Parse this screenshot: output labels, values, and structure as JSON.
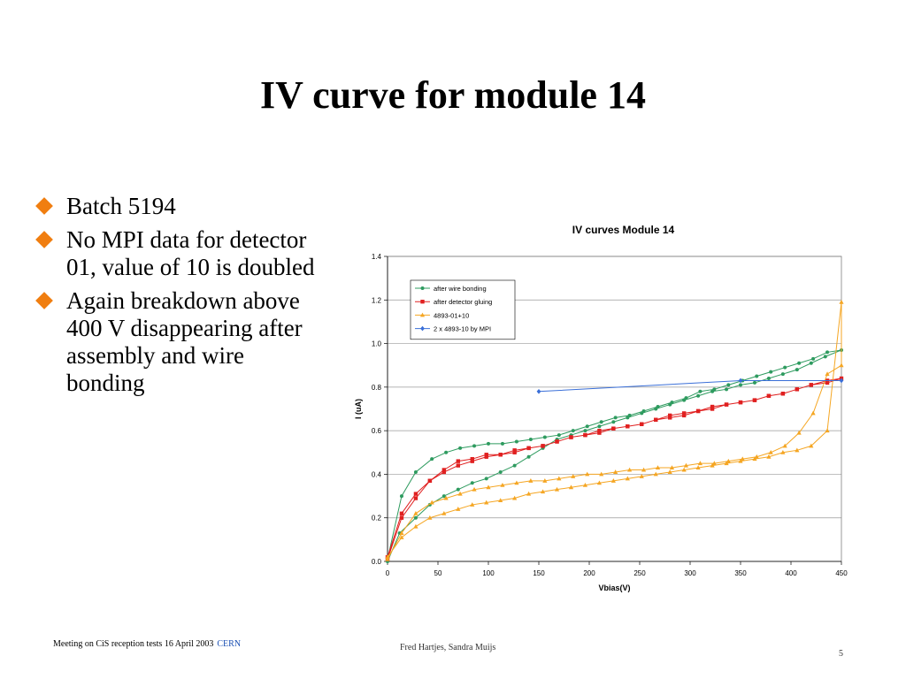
{
  "slide": {
    "title": "IV curve for module 14",
    "bullets": [
      "Batch 5194",
      "No MPI data for detector 01, value of 10 is doubled",
      "Again breakdown above 400 V disappearing after assembly and wire bonding"
    ],
    "bullet_color": "#f07e10",
    "footer": {
      "left_text": "Meeting on CiS reception tests 16 April 2003",
      "left_link": "CERN",
      "center_text": "Fred Hartjes, Sandra Muijs",
      "page_number": "5"
    }
  },
  "chart_data": {
    "type": "line",
    "title": "IV curves Module 14",
    "xlabel": "Vbias(V)",
    "ylabel": "I (uA)",
    "xlim": [
      0,
      450
    ],
    "ylim": [
      0,
      1.4
    ],
    "xticks": [
      "0",
      "50",
      "100",
      "150",
      "200",
      "250",
      "300",
      "350",
      "400",
      "450"
    ],
    "yticks": [
      "0.0",
      "0.2",
      "0.4",
      "0.6",
      "0.8",
      "1.0",
      "1.2",
      "1.4"
    ],
    "grid": "horizontal",
    "legend_position": "top-left",
    "series": [
      {
        "name": "after wire bonding",
        "color": "#2e9b5f",
        "marker": "circle",
        "points": [
          [
            0,
            0
          ],
          [
            12,
            0.13
          ],
          [
            28,
            0.2
          ],
          [
            42,
            0.26
          ],
          [
            56,
            0.3
          ],
          [
            70,
            0.33
          ],
          [
            84,
            0.36
          ],
          [
            98,
            0.38
          ],
          [
            112,
            0.41
          ],
          [
            126,
            0.44
          ],
          [
            140,
            0.48
          ],
          [
            154,
            0.52
          ],
          [
            168,
            0.56
          ],
          [
            182,
            0.58
          ],
          [
            196,
            0.6
          ],
          [
            210,
            0.62
          ],
          [
            224,
            0.64
          ],
          [
            238,
            0.66
          ],
          [
            252,
            0.68
          ],
          [
            266,
            0.7
          ],
          [
            280,
            0.72
          ],
          [
            294,
            0.74
          ],
          [
            308,
            0.76
          ],
          [
            322,
            0.78
          ],
          [
            336,
            0.79
          ],
          [
            350,
            0.81
          ],
          [
            364,
            0.82
          ],
          [
            378,
            0.84
          ],
          [
            392,
            0.86
          ],
          [
            406,
            0.88
          ],
          [
            420,
            0.91
          ],
          [
            434,
            0.94
          ],
          [
            450,
            0.97
          ],
          [
            436,
            0.96
          ],
          [
            422,
            0.93
          ],
          [
            408,
            0.91
          ],
          [
            394,
            0.89
          ],
          [
            380,
            0.87
          ],
          [
            366,
            0.85
          ],
          [
            352,
            0.83
          ],
          [
            338,
            0.81
          ],
          [
            324,
            0.79
          ],
          [
            310,
            0.78
          ],
          [
            296,
            0.75
          ],
          [
            282,
            0.73
          ],
          [
            268,
            0.71
          ],
          [
            254,
            0.69
          ],
          [
            240,
            0.67
          ],
          [
            226,
            0.66
          ],
          [
            212,
            0.64
          ],
          [
            198,
            0.62
          ],
          [
            184,
            0.6
          ],
          [
            170,
            0.58
          ],
          [
            156,
            0.57
          ],
          [
            142,
            0.56
          ],
          [
            128,
            0.55
          ],
          [
            114,
            0.54
          ],
          [
            100,
            0.54
          ],
          [
            86,
            0.53
          ],
          [
            72,
            0.52
          ],
          [
            58,
            0.5
          ],
          [
            44,
            0.47
          ],
          [
            28,
            0.41
          ],
          [
            14,
            0.3
          ],
          [
            0,
            0.01
          ]
        ]
      },
      {
        "name": "after detector gluing",
        "color": "#e02020",
        "marker": "square",
        "points": [
          [
            0,
            0.01
          ],
          [
            14,
            0.2
          ],
          [
            28,
            0.29
          ],
          [
            42,
            0.37
          ],
          [
            56,
            0.41
          ],
          [
            70,
            0.44
          ],
          [
            84,
            0.46
          ],
          [
            98,
            0.48
          ],
          [
            112,
            0.49
          ],
          [
            126,
            0.5
          ],
          [
            140,
            0.52
          ],
          [
            154,
            0.53
          ],
          [
            168,
            0.55
          ],
          [
            182,
            0.57
          ],
          [
            196,
            0.58
          ],
          [
            210,
            0.6
          ],
          [
            224,
            0.61
          ],
          [
            238,
            0.62
          ],
          [
            252,
            0.63
          ],
          [
            266,
            0.65
          ],
          [
            280,
            0.67
          ],
          [
            294,
            0.68
          ],
          [
            308,
            0.69
          ],
          [
            322,
            0.71
          ],
          [
            336,
            0.72
          ],
          [
            350,
            0.73
          ],
          [
            364,
            0.74
          ],
          [
            378,
            0.76
          ],
          [
            392,
            0.77
          ],
          [
            406,
            0.79
          ],
          [
            420,
            0.81
          ],
          [
            436,
            0.82
          ],
          [
            450,
            0.84
          ],
          [
            436,
            0.83
          ],
          [
            420,
            0.81
          ],
          [
            406,
            0.79
          ],
          [
            392,
            0.77
          ],
          [
            378,
            0.76
          ],
          [
            364,
            0.74
          ],
          [
            350,
            0.73
          ],
          [
            336,
            0.72
          ],
          [
            322,
            0.7
          ],
          [
            308,
            0.69
          ],
          [
            294,
            0.67
          ],
          [
            280,
            0.66
          ],
          [
            266,
            0.65
          ],
          [
            252,
            0.63
          ],
          [
            238,
            0.62
          ],
          [
            224,
            0.61
          ],
          [
            210,
            0.59
          ],
          [
            196,
            0.58
          ],
          [
            182,
            0.57
          ],
          [
            168,
            0.55
          ],
          [
            154,
            0.53
          ],
          [
            140,
            0.52
          ],
          [
            126,
            0.51
          ],
          [
            112,
            0.49
          ],
          [
            98,
            0.49
          ],
          [
            84,
            0.47
          ],
          [
            70,
            0.46
          ],
          [
            56,
            0.42
          ],
          [
            42,
            0.37
          ],
          [
            28,
            0.31
          ],
          [
            14,
            0.22
          ],
          [
            0,
            0.02
          ]
        ]
      },
      {
        "name": "4893-01+10",
        "color": "#f5a623",
        "marker": "triangle",
        "points": [
          [
            0,
            0.02
          ],
          [
            14,
            0.11
          ],
          [
            28,
            0.16
          ],
          [
            42,
            0.2
          ],
          [
            56,
            0.22
          ],
          [
            70,
            0.24
          ],
          [
            84,
            0.26
          ],
          [
            98,
            0.27
          ],
          [
            112,
            0.28
          ],
          [
            126,
            0.29
          ],
          [
            140,
            0.31
          ],
          [
            154,
            0.32
          ],
          [
            168,
            0.33
          ],
          [
            182,
            0.34
          ],
          [
            196,
            0.35
          ],
          [
            210,
            0.36
          ],
          [
            224,
            0.37
          ],
          [
            238,
            0.38
          ],
          [
            252,
            0.39
          ],
          [
            266,
            0.4
          ],
          [
            280,
            0.41
          ],
          [
            294,
            0.42
          ],
          [
            308,
            0.43
          ],
          [
            322,
            0.44
          ],
          [
            336,
            0.45
          ],
          [
            350,
            0.46
          ],
          [
            364,
            0.47
          ],
          [
            378,
            0.48
          ],
          [
            392,
            0.5
          ],
          [
            406,
            0.51
          ],
          [
            420,
            0.53
          ],
          [
            436,
            0.6
          ],
          [
            450,
            1.19
          ],
          [
            450,
            0.9
          ],
          [
            436,
            0.86
          ],
          [
            422,
            0.68
          ],
          [
            408,
            0.59
          ],
          [
            394,
            0.53
          ],
          [
            380,
            0.5
          ],
          [
            366,
            0.48
          ],
          [
            352,
            0.47
          ],
          [
            338,
            0.46
          ],
          [
            324,
            0.45
          ],
          [
            310,
            0.45
          ],
          [
            296,
            0.44
          ],
          [
            282,
            0.43
          ],
          [
            268,
            0.43
          ],
          [
            254,
            0.42
          ],
          [
            240,
            0.42
          ],
          [
            226,
            0.41
          ],
          [
            212,
            0.4
          ],
          [
            198,
            0.4
          ],
          [
            184,
            0.39
          ],
          [
            170,
            0.38
          ],
          [
            156,
            0.37
          ],
          [
            142,
            0.37
          ],
          [
            128,
            0.36
          ],
          [
            114,
            0.35
          ],
          [
            100,
            0.34
          ],
          [
            86,
            0.33
          ],
          [
            72,
            0.31
          ],
          [
            58,
            0.29
          ],
          [
            44,
            0.27
          ],
          [
            28,
            0.22
          ],
          [
            14,
            0.13
          ],
          [
            0,
            0.01
          ]
        ]
      },
      {
        "name": "2 x 4893-10 by MPI",
        "color": "#3a6fd8",
        "marker": "diamond",
        "points": [
          [
            150,
            0.78
          ],
          [
            350,
            0.83
          ],
          [
            450,
            0.83
          ]
        ]
      }
    ]
  }
}
